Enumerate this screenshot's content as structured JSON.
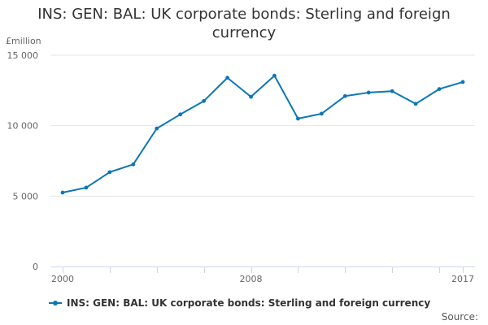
{
  "chart_data": {
    "type": "line",
    "title": "INS: GEN: BAL: UK corporate bonds: Sterling and foreign currency",
    "ylabel": "£million",
    "xlabel": "",
    "x": [
      2000,
      2001,
      2002,
      2003,
      2004,
      2005,
      2006,
      2007,
      2008,
      2009,
      2010,
      2011,
      2012,
      2013,
      2014,
      2015,
      2016,
      2017
    ],
    "x_tick_labels": [
      {
        "value": 2000,
        "label": "2000"
      },
      {
        "value": 2008,
        "label": "2008"
      },
      {
        "value": 2017,
        "label": "2017"
      }
    ],
    "y_tick_labels": [
      {
        "value": 0,
        "label": "0"
      },
      {
        "value": 5000,
        "label": "5 000"
      },
      {
        "value": 10000,
        "label": "10 000"
      },
      {
        "value": 15000,
        "label": "15 000"
      }
    ],
    "xlim": [
      2000,
      2017
    ],
    "ylim": [
      0,
      15000
    ],
    "grid": "horizontal",
    "legend_position": "bottom",
    "colors": {
      "series": "#0b77b5",
      "grid": "#e6e6e6",
      "axis": "#ccd6eb"
    },
    "series": [
      {
        "name": "INS: GEN: BAL: UK corporate bonds: Sterling and foreign currency",
        "values": [
          5250,
          5600,
          6700,
          7250,
          9800,
          10800,
          11750,
          13400,
          12050,
          13550,
          10500,
          10850,
          12100,
          12350,
          12450,
          11550,
          12600,
          13100
        ]
      }
    ]
  },
  "footer": {
    "source_label": "Source:"
  }
}
